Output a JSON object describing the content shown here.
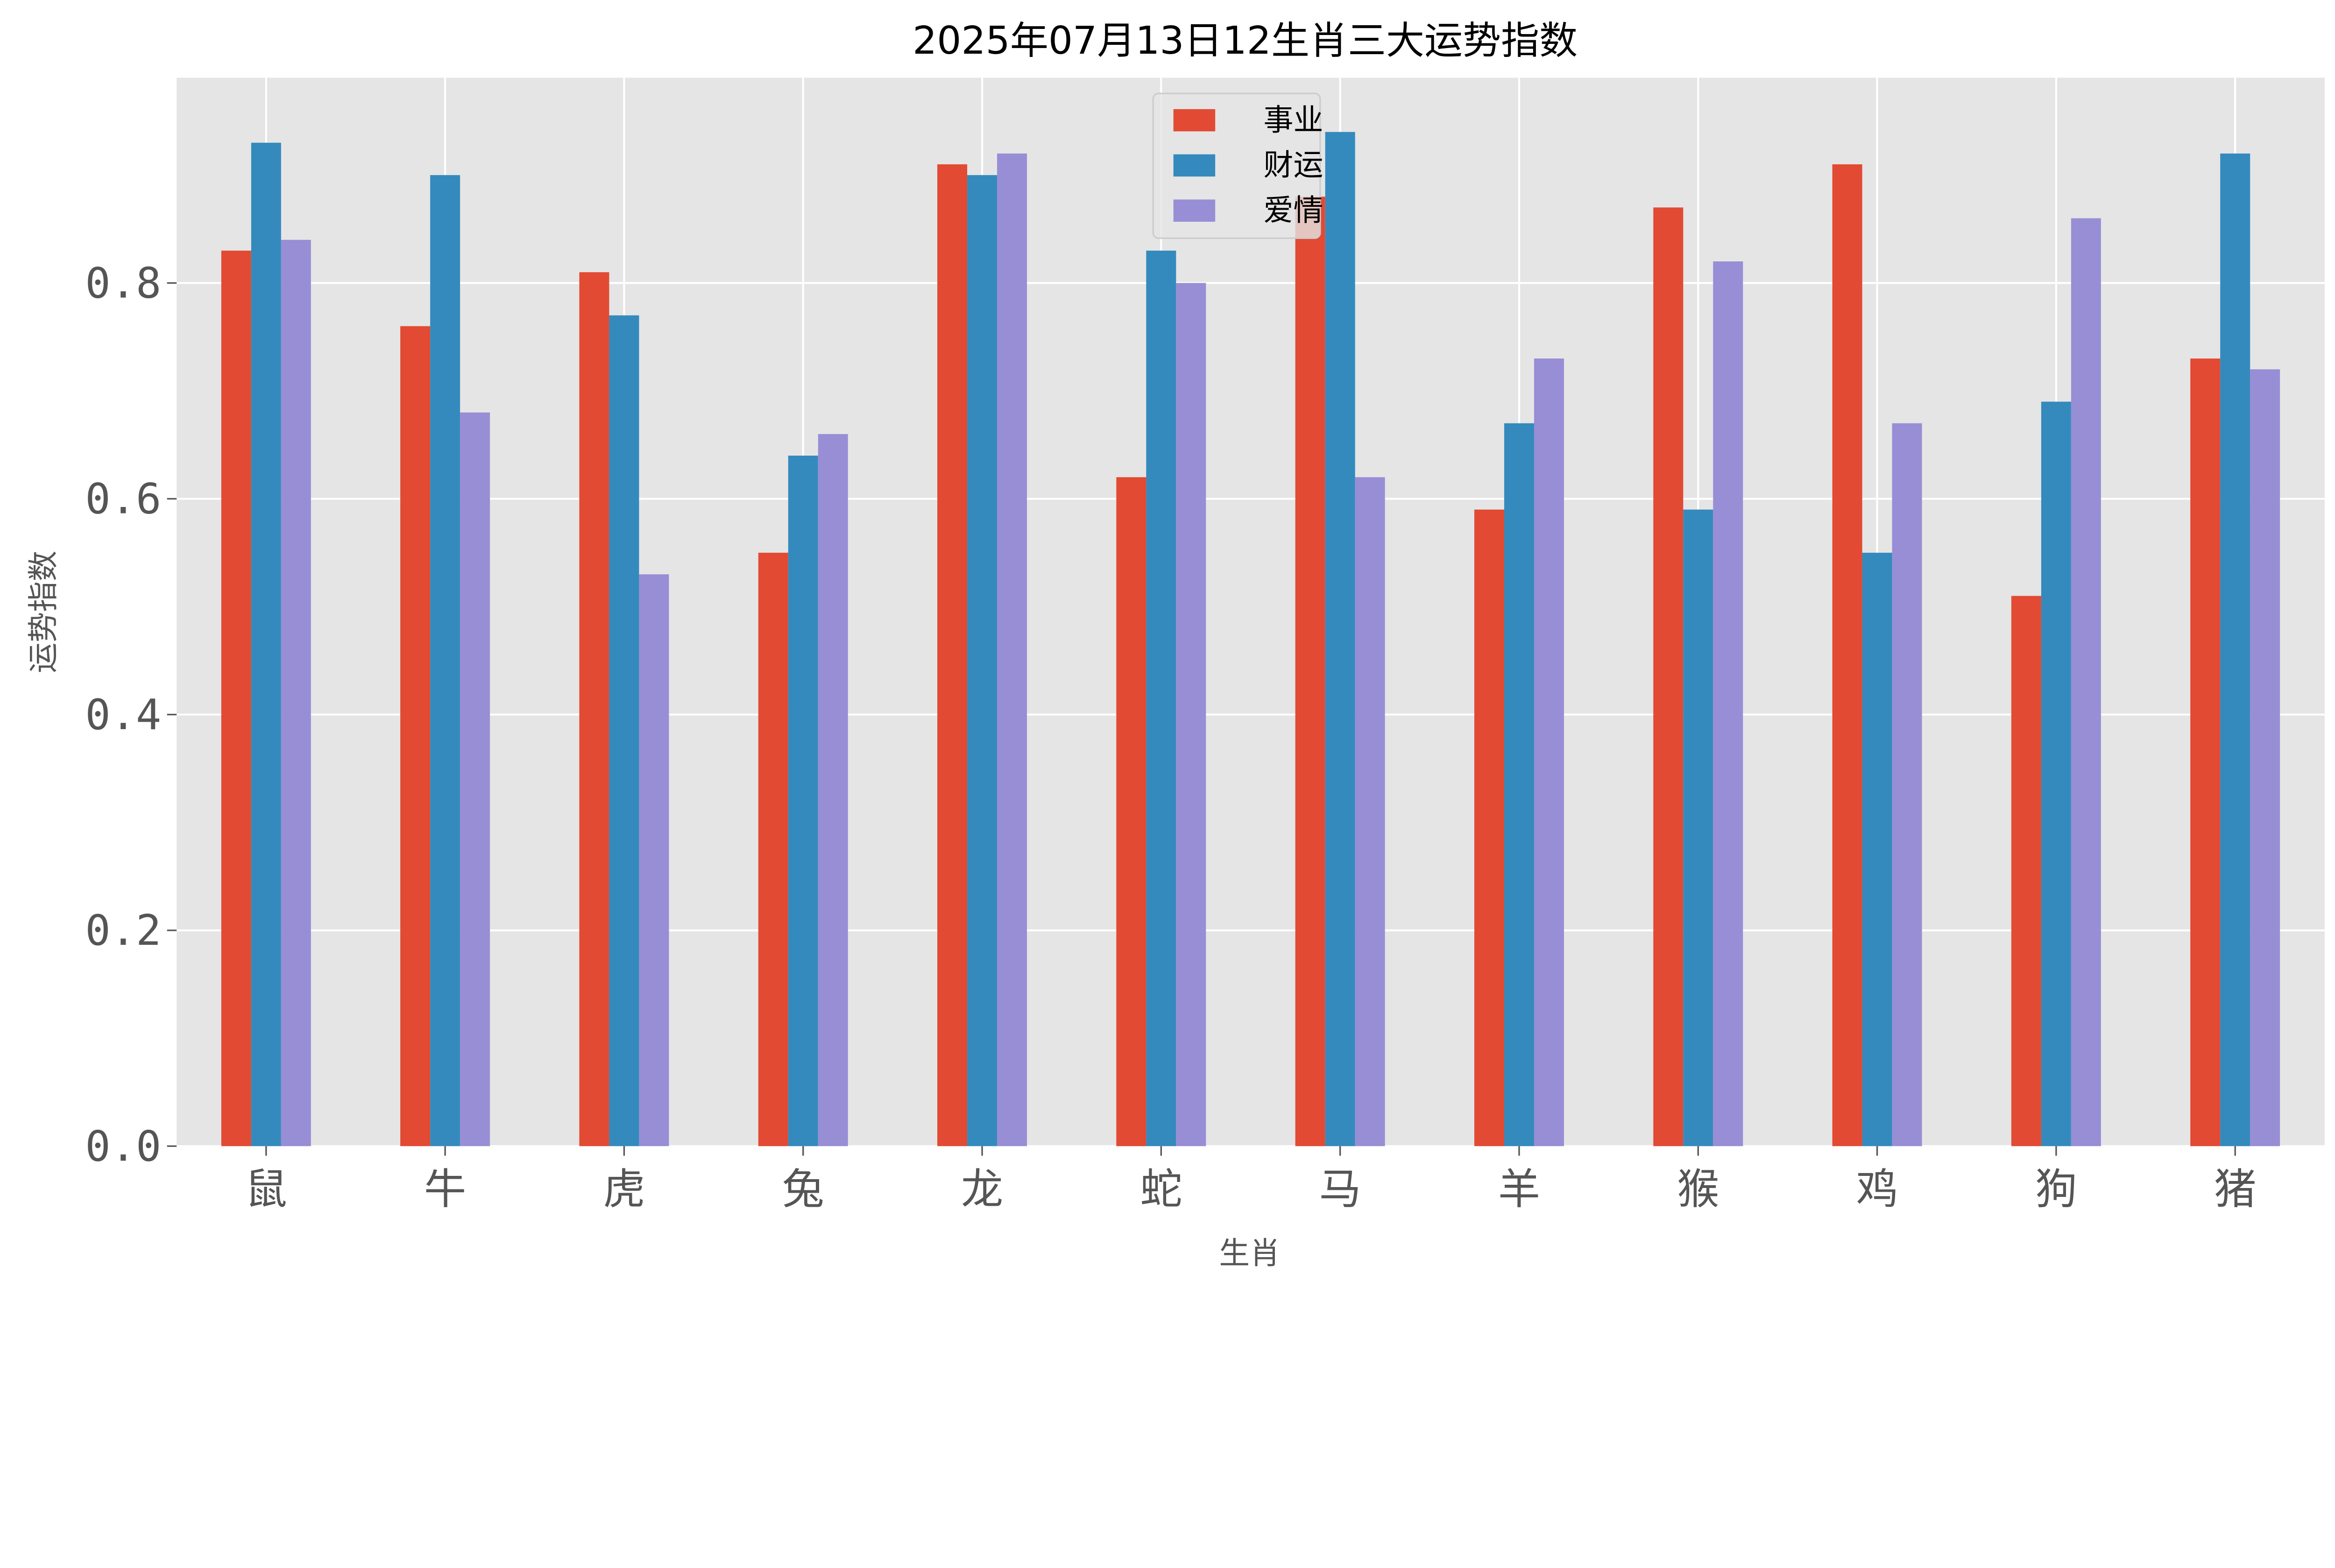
{
  "chart_data": {
    "type": "bar",
    "title": "2025年07月13日12生肖三大运势指数",
    "xlabel": "生肖",
    "ylabel": "运势指数",
    "categories": [
      "鼠",
      "牛",
      "虎",
      "兔",
      "龙",
      "蛇",
      "马",
      "羊",
      "猴",
      "鸡",
      "狗",
      "猪"
    ],
    "series": [
      {
        "name": "事业",
        "color": "#E24A33",
        "values": [
          0.83,
          0.76,
          0.81,
          0.55,
          0.91,
          0.62,
          0.88,
          0.59,
          0.87,
          0.91,
          0.51,
          0.73
        ]
      },
      {
        "name": "财运",
        "color": "#348ABD",
        "values": [
          0.93,
          0.9,
          0.77,
          0.64,
          0.9,
          0.83,
          0.94,
          0.67,
          0.59,
          0.55,
          0.69,
          0.92
        ]
      },
      {
        "name": "爱情",
        "color": "#988ED5",
        "values": [
          0.84,
          0.68,
          0.53,
          0.66,
          0.92,
          0.8,
          0.62,
          0.73,
          0.82,
          0.67,
          0.86,
          0.72
        ]
      }
    ],
    "yticks": [
      "0.0",
      "0.2",
      "0.4",
      "0.6",
      "0.8"
    ],
    "ylim": [
      0,
      0.99
    ],
    "grid": true,
    "legend": "top-center",
    "background": "#E5E5E5"
  }
}
